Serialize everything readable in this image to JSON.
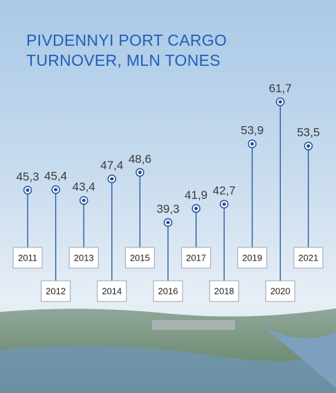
{
  "chart_data": {
    "type": "lollipop",
    "title": "PIVDENNYI PORT CARGO TURNOVER, MLN TONES",
    "categories": [
      "2011",
      "2012",
      "2013",
      "2014",
      "2015",
      "2016",
      "2017",
      "2018",
      "2019",
      "2020",
      "2021"
    ],
    "values": [
      45.3,
      45.4,
      43.4,
      47.4,
      48.6,
      39.3,
      41.9,
      42.7,
      53.9,
      61.7,
      53.5
    ],
    "value_labels": [
      "45,3",
      "45,4",
      "43,4",
      "47,4",
      "48,6",
      "39,3",
      "41,9",
      "42,7",
      "53,9",
      "61,7",
      "53,5"
    ],
    "color": "#1d4f9c"
  }
}
